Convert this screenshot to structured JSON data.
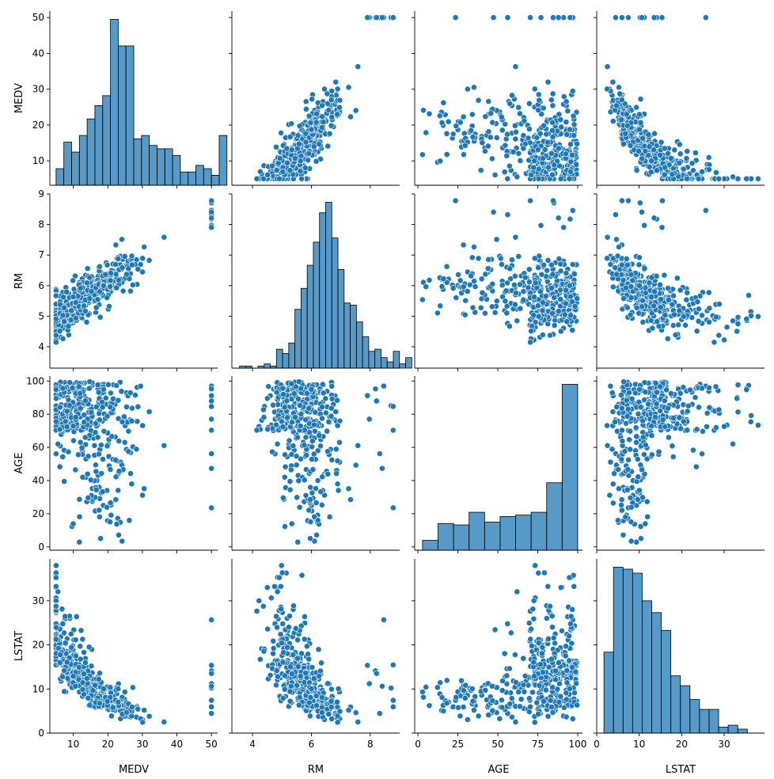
{
  "chart_data": {
    "type": "scatter",
    "variables": [
      "MEDV",
      "RM",
      "AGE",
      "LSTAT"
    ],
    "color": "#1f77b4",
    "axes": {
      "MEDV": {
        "lim": [
          3.2,
          51.8
        ],
        "ticks": [
          10,
          20,
          30,
          40,
          50
        ]
      },
      "RM": {
        "lim": [
          3.3,
          9.0
        ],
        "ticks": [
          4,
          5,
          6,
          7,
          8,
          9
        ]
      },
      "AGE": {
        "lim": [
          -2,
          103
        ],
        "ticks": [
          0,
          20,
          40,
          60,
          80,
          100
        ]
      },
      "LSTAT": {
        "lim": [
          0,
          39.5
        ],
        "ticks": [
          0,
          10,
          20,
          30
        ]
      }
    },
    "bottom_ticks": {
      "MEDV": [
        10,
        20,
        30,
        40,
        50
      ],
      "RM": [
        4,
        6,
        8
      ],
      "AGE": [
        0,
        25,
        50,
        75,
        100
      ],
      "LSTAT": [
        0,
        10,
        20,
        30
      ]
    },
    "diagonal": [
      {
        "variable": "MEDV",
        "bin_width": 2.25,
        "x_start": 5.0,
        "values": [
          5,
          13,
          10,
          15,
          20,
          24,
          27,
          50,
          42,
          42,
          14,
          15,
          12,
          11,
          11,
          9,
          4,
          4,
          6,
          5,
          3,
          15
        ]
      },
      {
        "variable": "RM",
        "bin_width": 0.209,
        "x_start": 3.56,
        "values": [
          1,
          1,
          0,
          1,
          2,
          1,
          9,
          7,
          12,
          28,
          38,
          49,
          60,
          74,
          79,
          62,
          47,
          31,
          30,
          22,
          15,
          8,
          9,
          5,
          3,
          8,
          2,
          5
        ]
      },
      {
        "variable": "AGE",
        "bin_width": 9.71,
        "x_start": 2.9,
        "values": [
          7,
          19,
          18,
          27,
          20,
          24,
          25,
          27,
          48,
          118
        ]
      },
      {
        "variable": "LSTAT",
        "bin_width": 2.25,
        "x_start": 1.7,
        "values": [
          41,
          84,
          83,
          81,
          67,
          61,
          52,
          29,
          24,
          17,
          12,
          12,
          3,
          4,
          2
        ]
      }
    ],
    "scatter_points_approx": 400,
    "scatter_points_note_free": "",
    "title": "",
    "legend": ""
  }
}
